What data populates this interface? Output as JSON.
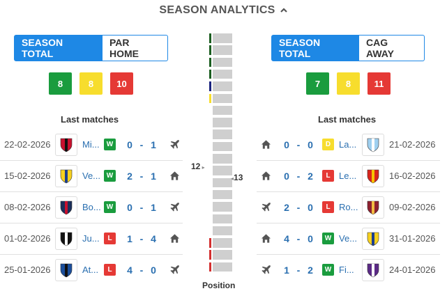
{
  "header": {
    "title": "SEASON ANALYTICS"
  },
  "left": {
    "tabs": {
      "active": "SEASON TOTAL",
      "inactive": "PAR HOME"
    },
    "counts": [
      {
        "value": "8",
        "color": "#1a9c3e"
      },
      {
        "value": "8",
        "color": "#f7dd2d"
      },
      {
        "value": "10",
        "color": "#e53935"
      }
    ],
    "last_title": "Last matches",
    "matches": [
      {
        "date": "22-02-2026",
        "team": "Mi...",
        "crest": "milan-crest-icon",
        "result": "W",
        "score_a": "0",
        "score_b": "1",
        "venue": "plane-icon"
      },
      {
        "date": "15-02-2026",
        "team": "Ve...",
        "crest": "verona-crest-icon",
        "result": "W",
        "score_a": "2",
        "score_b": "1",
        "venue": "home-icon"
      },
      {
        "date": "08-02-2026",
        "team": "Bo...",
        "crest": "bologna-crest-icon",
        "result": "W",
        "score_a": "0",
        "score_b": "1",
        "venue": "plane-icon"
      },
      {
        "date": "01-02-2026",
        "team": "Ju...",
        "crest": "juventus-crest-icon",
        "result": "L",
        "score_a": "1",
        "score_b": "4",
        "venue": "home-icon"
      },
      {
        "date": "25-01-2026",
        "team": "At...",
        "crest": "atalanta-crest-icon",
        "result": "L",
        "score_a": "4",
        "score_b": "0",
        "venue": "plane-icon"
      }
    ]
  },
  "right": {
    "tabs": {
      "active": "SEASON TOTAL",
      "inactive": "CAG AWAY"
    },
    "counts": [
      {
        "value": "7",
        "color": "#1a9c3e"
      },
      {
        "value": "8",
        "color": "#f7dd2d"
      },
      {
        "value": "11",
        "color": "#e53935"
      }
    ],
    "last_title": "Last matches",
    "matches": [
      {
        "date": "21-02-2026",
        "team": "La...",
        "crest": "lazio-crest-icon",
        "result": "D",
        "score_a": "0",
        "score_b": "0",
        "venue": "home-icon"
      },
      {
        "date": "16-02-2026",
        "team": "Le...",
        "crest": "lecce-crest-icon",
        "result": "L",
        "score_a": "0",
        "score_b": "2",
        "venue": "home-icon"
      },
      {
        "date": "09-02-2026",
        "team": "Ro...",
        "crest": "roma-crest-icon",
        "result": "L",
        "score_a": "2",
        "score_b": "0",
        "venue": "plane-icon"
      },
      {
        "date": "31-01-2026",
        "team": "Ve...",
        "crest": "verona-crest-icon",
        "result": "W",
        "score_a": "4",
        "score_b": "0",
        "venue": "home-icon"
      },
      {
        "date": "24-01-2026",
        "team": "Fi...",
        "crest": "fiorentina-crest-icon",
        "result": "W",
        "score_a": "1",
        "score_b": "2",
        "venue": "plane-icon"
      }
    ]
  },
  "position": {
    "label": "Position",
    "left_team_position": "12",
    "right_team_position": "13",
    "total_positions": 20,
    "zone_colors": [
      "#1b5e20",
      "#1b5e20",
      "#1b5e20",
      "#1b5e20",
      "#1a237e",
      "#f7dd2d",
      "",
      "",
      "",
      "",
      "",
      "",
      "",
      "",
      "",
      "",
      "",
      "#d32f2f",
      "#d32f2f",
      "#d32f2f"
    ]
  },
  "colors": {
    "win": "#1a9c3e",
    "draw": "#f7dd2d",
    "loss": "#e53935",
    "accent": "#1e88e5"
  }
}
